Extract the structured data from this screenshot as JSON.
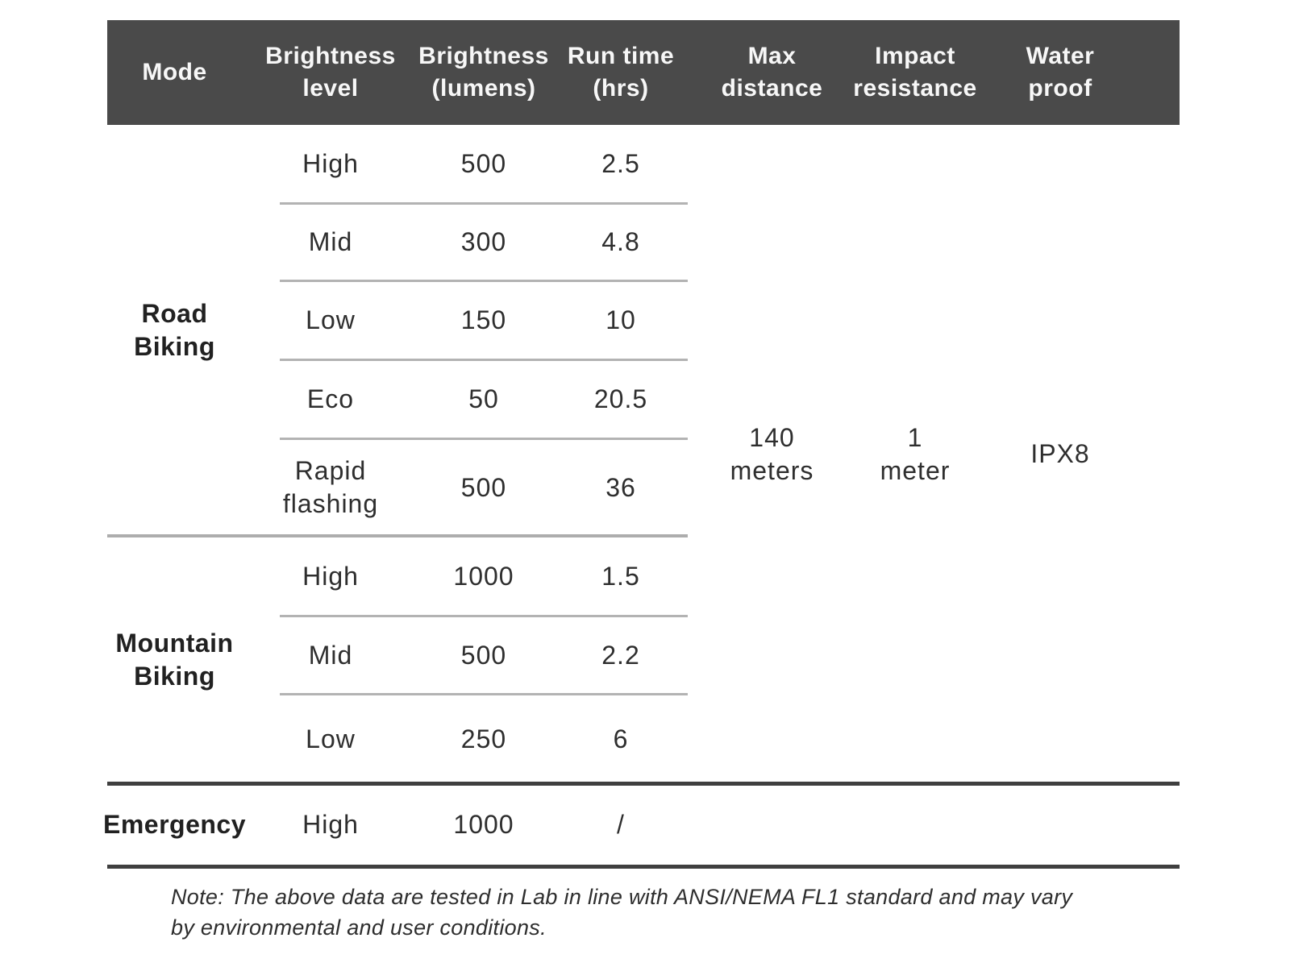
{
  "table": {
    "header": {
      "mode": "Mode",
      "brightness_level": "Brightness\nlevel",
      "brightness_lumens": "Brightness\n(lumens)",
      "run_time": "Run time\n(hrs)",
      "max_distance": "Max\ndistance",
      "impact_resistance": "Impact\nresistance",
      "water_proof": "Water\nproof"
    },
    "groups": [
      {
        "mode": "Road\nBiking",
        "rows": [
          {
            "level": "High",
            "lumens": "500",
            "run_time": "2.5"
          },
          {
            "level": "Mid",
            "lumens": "300",
            "run_time": "4.8"
          },
          {
            "level": "Low",
            "lumens": "150",
            "run_time": "10"
          },
          {
            "level": "Eco",
            "lumens": "50",
            "run_time": "20.5"
          },
          {
            "level": "Rapid\nflashing",
            "lumens": "500",
            "run_time": "36"
          }
        ]
      },
      {
        "mode": "Mountain\nBiking",
        "rows": [
          {
            "level": "High",
            "lumens": "1000",
            "run_time": "1.5"
          },
          {
            "level": "Mid",
            "lumens": "500",
            "run_time": "2.2"
          },
          {
            "level": "Low",
            "lumens": "250",
            "run_time": "6"
          }
        ]
      },
      {
        "mode": "Emergency",
        "rows": [
          {
            "level": "High",
            "lumens": "1000",
            "run_time": "/"
          }
        ]
      }
    ],
    "specs": {
      "max_distance": "140\nmeters",
      "impact_resistance": "1\nmeter",
      "water_proof": "IPX8"
    }
  },
  "note": "Note: The above data are tested in Lab in line with ANSI/NEMA FL1 standard and may vary by environmental and user conditions.",
  "colors": {
    "header_bg": "#4a4a4a",
    "header_text": "#f7f7f7",
    "body_text": "#2e2e2e",
    "divider_light": "#b3b3b3",
    "divider_heavy": "#3f3f3f"
  },
  "chart_data": {
    "type": "table",
    "title": "Bike light modes specification",
    "columns": [
      "Mode",
      "Brightness level",
      "Brightness (lumens)",
      "Run time (hrs)",
      "Max distance",
      "Impact resistance",
      "Water proof"
    ],
    "rows": [
      [
        "Road Biking",
        "High",
        500,
        2.5,
        "140 meters",
        "1 meter",
        "IPX8"
      ],
      [
        "Road Biking",
        "Mid",
        300,
        4.8,
        "140 meters",
        "1 meter",
        "IPX8"
      ],
      [
        "Road Biking",
        "Low",
        150,
        10,
        "140 meters",
        "1 meter",
        "IPX8"
      ],
      [
        "Road Biking",
        "Eco",
        50,
        20.5,
        "140 meters",
        "1 meter",
        "IPX8"
      ],
      [
        "Road Biking",
        "Rapid flashing",
        500,
        36,
        "140 meters",
        "1 meter",
        "IPX8"
      ],
      [
        "Mountain Biking",
        "High",
        1000,
        1.5,
        "140 meters",
        "1 meter",
        "IPX8"
      ],
      [
        "Mountain Biking",
        "Mid",
        500,
        2.2,
        "140 meters",
        "1 meter",
        "IPX8"
      ],
      [
        "Mountain Biking",
        "Low",
        250,
        6,
        "140 meters",
        "1 meter",
        "IPX8"
      ],
      [
        "Emergency",
        "High",
        1000,
        "/",
        "",
        "",
        ""
      ]
    ],
    "note": "Note: The above data are tested in Lab in line with ANSI/NEMA FL1 standard and may vary by environmental and user conditions."
  }
}
